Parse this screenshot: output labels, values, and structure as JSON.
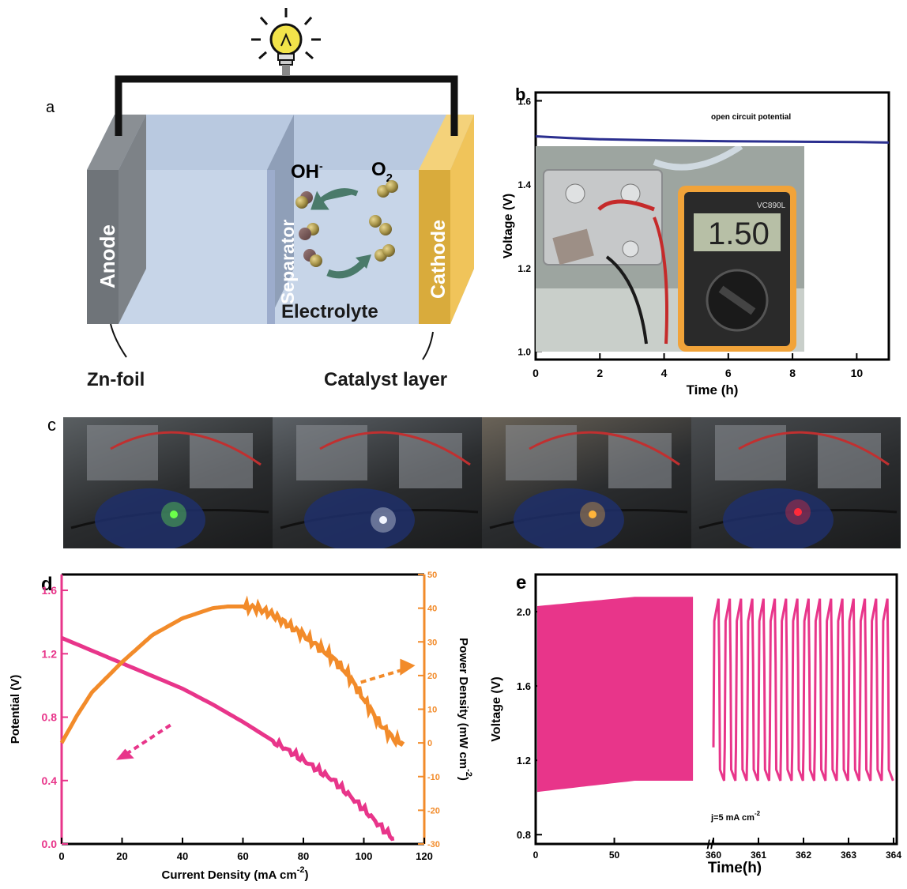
{
  "panel_a": {
    "label": "a",
    "anode": "Anode",
    "separator": "Separator",
    "cathode": "Cathode",
    "oh": "OH",
    "oh_sup": "-",
    "o2": "O",
    "o2_sub": "2",
    "electrolyte": "Electrolyte",
    "zn_foil": "Zn-foil",
    "catalyst": "Catalyst layer",
    "colors": {
      "anode": "#6f7479",
      "electrolyte": "#c6d3e6",
      "cathode": "#f0c45a",
      "wire": "#111111",
      "bulb": "#f2e34a"
    }
  },
  "panel_c": {
    "label": "c",
    "leds": [
      {
        "color": "#6cff4a"
      },
      {
        "color": "#f2f6ff"
      },
      {
        "color": "#ffb43a"
      },
      {
        "color": "#ff2a3a"
      }
    ]
  },
  "chart_data": [
    {
      "panel": "b",
      "type": "line",
      "xlabel": "Time (h)",
      "ylabel": "Voltage (V)",
      "xlim": [
        0,
        11
      ],
      "ylim": [
        1.0,
        1.65
      ],
      "xticks": [
        "0",
        "2",
        "4",
        "6",
        "8",
        "10"
      ],
      "yticks": [
        "1.0",
        "1.2",
        "1.4",
        "1.6",
        "1.8"
      ],
      "annotation": "open circuit potential",
      "inset_reading": "1.50",
      "inset_meter_model": "VC890L",
      "series": [
        {
          "color": "#2b2f8f",
          "x": [
            0,
            1,
            2,
            4,
            6,
            8,
            10,
            11
          ],
          "y": [
            1.515,
            1.511,
            1.508,
            1.505,
            1.503,
            1.502,
            1.501,
            1.5
          ]
        }
      ]
    },
    {
      "panel": "d",
      "type": "line",
      "xlabel": "Current Density (mA cm",
      "xlabel_sup": "-2",
      "xlabel_close": ")",
      "ylabel_left": "Potential (V)",
      "ylabel_right": "Power Density (mW cm",
      "ylabel_right_sup": "-2",
      "ylabel_right_close": ")",
      "xlim": [
        0,
        120
      ],
      "ylim_left": [
        0,
        1.7
      ],
      "ylim_right": [
        -30,
        50
      ],
      "xticks": [
        "0",
        "20",
        "40",
        "60",
        "80",
        "100",
        "120"
      ],
      "yticks_left": [
        "0.0",
        "0.4",
        "0.8",
        "1.2",
        "1.6"
      ],
      "yticks_right": [
        "-30",
        "-20",
        "-10",
        "0",
        "10",
        "20",
        "30",
        "40",
        "50"
      ],
      "series": [
        {
          "name": "Potential",
          "axis": "left",
          "color": "#e8358a",
          "x": [
            0,
            10,
            20,
            30,
            40,
            50,
            60,
            70,
            80,
            90,
            100,
            105,
            110
          ],
          "y": [
            1.3,
            1.22,
            1.14,
            1.06,
            0.98,
            0.88,
            0.77,
            0.65,
            0.53,
            0.4,
            0.22,
            0.12,
            0.03
          ]
        },
        {
          "name": "Power Density",
          "axis": "right",
          "color": "#f28b2a",
          "x": [
            0,
            5,
            10,
            20,
            30,
            40,
            50,
            55,
            60,
            65,
            70,
            80,
            90,
            95,
            100,
            105,
            110,
            113
          ],
          "y": [
            0,
            8,
            15,
            24,
            32,
            37,
            40,
            40.5,
            40.5,
            40,
            38,
            32,
            25,
            20,
            13,
            6,
            1,
            0
          ]
        }
      ]
    },
    {
      "panel": "e",
      "type": "line",
      "xlabel": "Time(h)",
      "ylabel": "Voltage (V)",
      "annotation": "j=5 mA cm",
      "annotation_sup": "-2",
      "xticks": [
        "0",
        "50",
        "360",
        "361",
        "362",
        "363",
        "364"
      ],
      "yticks": [
        "0.8",
        "1.2",
        "1.6",
        "2.0"
      ],
      "ylim": [
        0.75,
        2.2
      ],
      "cycling": {
        "color": "#e8358a",
        "dense_range_h": [
          0,
          100
        ],
        "charge_start": 2.03,
        "charge_end": 2.08,
        "discharge_start": 1.03,
        "discharge_end": 1.09,
        "zoom_range_h": [
          360,
          364
        ],
        "zoom_cycles": 16,
        "zoom_high": 2.07,
        "zoom_low": 1.09
      }
    }
  ]
}
